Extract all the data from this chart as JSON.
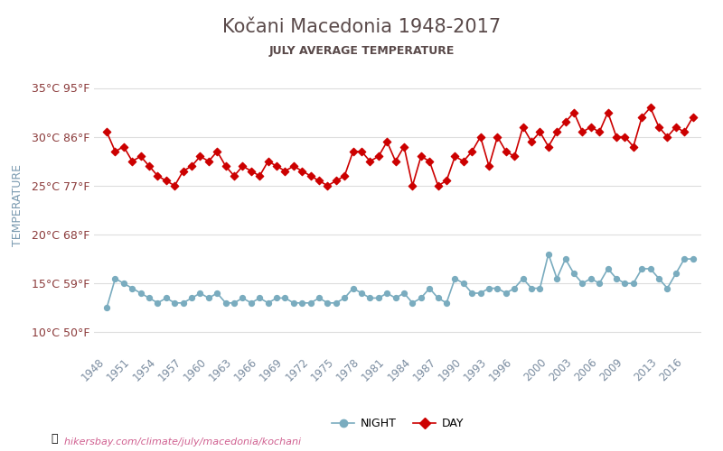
{
  "title": "Kočani Macedonia 1948-2017",
  "subtitle": "JULY AVERAGE TEMPERATURE",
  "xlabel_url": "hikersbay.com/climate/july/macedonia/kochani",
  "ylabel": "TEMPERATURE",
  "years": [
    1948,
    1949,
    1950,
    1951,
    1952,
    1953,
    1954,
    1955,
    1956,
    1957,
    1958,
    1959,
    1960,
    1961,
    1962,
    1963,
    1964,
    1965,
    1966,
    1967,
    1968,
    1969,
    1970,
    1971,
    1972,
    1973,
    1974,
    1975,
    1976,
    1977,
    1978,
    1979,
    1980,
    1981,
    1982,
    1983,
    1984,
    1985,
    1986,
    1987,
    1988,
    1989,
    1990,
    1991,
    1992,
    1993,
    1994,
    1995,
    1996,
    1997,
    1998,
    1999,
    2000,
    2001,
    2002,
    2003,
    2004,
    2005,
    2006,
    2007,
    2008,
    2009,
    2010,
    2011,
    2012,
    2013,
    2014,
    2015,
    2016,
    2017
  ],
  "day_temps": [
    30.5,
    28.5,
    29.0,
    27.5,
    28.0,
    27.0,
    26.0,
    25.5,
    25.0,
    26.5,
    27.0,
    28.0,
    27.5,
    28.5,
    27.0,
    26.0,
    27.0,
    26.5,
    26.0,
    27.5,
    27.0,
    26.5,
    27.0,
    26.5,
    26.0,
    25.5,
    25.0,
    25.5,
    26.0,
    28.5,
    28.5,
    27.5,
    28.0,
    29.5,
    27.5,
    29.0,
    25.0,
    28.0,
    27.5,
    25.0,
    25.5,
    28.0,
    27.5,
    28.5,
    30.0,
    27.0,
    30.0,
    28.5,
    28.0,
    31.0,
    29.5,
    30.5,
    29.0,
    30.5,
    31.5,
    32.5,
    30.5,
    31.0,
    30.5,
    32.5,
    30.0,
    30.0,
    29.0,
    32.0,
    33.0,
    31.0,
    30.0,
    31.0,
    30.5,
    32.0
  ],
  "night_temps": [
    12.5,
    15.5,
    15.0,
    14.5,
    14.0,
    13.5,
    13.0,
    13.5,
    13.0,
    13.0,
    13.5,
    14.0,
    13.5,
    14.0,
    13.0,
    13.0,
    13.5,
    13.0,
    13.5,
    13.0,
    13.5,
    13.5,
    13.0,
    13.0,
    13.0,
    13.5,
    13.0,
    13.0,
    13.5,
    14.5,
    14.0,
    13.5,
    13.5,
    14.0,
    13.5,
    14.0,
    13.0,
    13.5,
    14.5,
    13.5,
    13.0,
    15.5,
    15.0,
    14.0,
    14.0,
    14.5,
    14.5,
    14.0,
    14.5,
    15.5,
    14.5,
    14.5,
    18.0,
    15.5,
    17.5,
    16.0,
    15.0,
    15.5,
    15.0,
    16.5,
    15.5,
    15.0,
    15.0,
    16.5,
    16.5,
    15.5,
    14.5,
    16.0,
    17.5,
    17.5
  ],
  "day_color": "#cc0000",
  "night_color": "#7aacbf",
  "background_color": "#ffffff",
  "grid_color": "#dddddd",
  "title_color": "#5a4a4a",
  "subtitle_color": "#5a4a4a",
  "ylabel_color": "#7a9ab0",
  "tick_label_color": "#8b3a3a",
  "url_color": "#d06090",
  "yticks_c": [
    10,
    15,
    20,
    25,
    30,
    35
  ],
  "yticks_f": [
    50,
    59,
    68,
    77,
    86,
    95
  ],
  "ylim": [
    8,
    38
  ],
  "xtick_years": [
    1948,
    1951,
    1954,
    1957,
    1960,
    1963,
    1966,
    1969,
    1972,
    1975,
    1978,
    1981,
    1984,
    1987,
    1990,
    1993,
    1996,
    2000,
    2003,
    2006,
    2009,
    2013,
    2016
  ]
}
